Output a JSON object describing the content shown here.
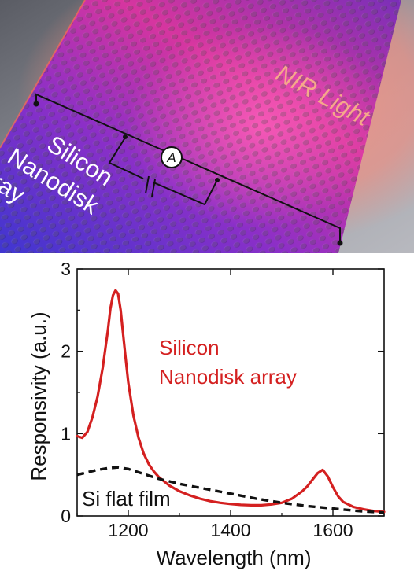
{
  "illustration": {
    "label_array_lines": [
      "Silicon",
      "Nanodisk",
      "Array"
    ],
    "label_light": "NIR Light",
    "ammeter_symbol": "A",
    "colors": {
      "background": "#8e9098",
      "sheet_blue": "#4a3fd8",
      "sheet_magenta": "#e0379e",
      "glow": "#ff8a7a",
      "wire": "#111111",
      "text_white": "#ffffff",
      "text_light": "#f3a98c"
    }
  },
  "chart_data": {
    "type": "line",
    "xlabel": "Wavelength (nm)",
    "ylabel": "Responsivity (a.u.)",
    "xlim": [
      1100,
      1700
    ],
    "ylim": [
      0,
      3
    ],
    "xticks": [
      1200,
      1400,
      1600
    ],
    "yticks": [
      0,
      1,
      2,
      3
    ],
    "grid": false,
    "series": [
      {
        "name": "Silicon Nanodisk array",
        "label_lines": [
          "Silicon",
          "Nanodisk array"
        ],
        "color": "#d42020",
        "style": "solid",
        "x": [
          1100,
          1110,
          1120,
          1130,
          1140,
          1150,
          1160,
          1165,
          1170,
          1175,
          1180,
          1185,
          1190,
          1195,
          1200,
          1210,
          1220,
          1230,
          1240,
          1250,
          1260,
          1280,
          1300,
          1320,
          1340,
          1360,
          1380,
          1400,
          1420,
          1440,
          1460,
          1480,
          1500,
          1520,
          1540,
          1550,
          1560,
          1570,
          1580,
          1590,
          1600,
          1610,
          1620,
          1640,
          1660,
          1680,
          1700
        ],
        "y": [
          0.97,
          0.95,
          1.02,
          1.2,
          1.45,
          1.8,
          2.25,
          2.52,
          2.68,
          2.74,
          2.7,
          2.5,
          2.2,
          1.9,
          1.62,
          1.22,
          0.95,
          0.76,
          0.63,
          0.54,
          0.47,
          0.37,
          0.3,
          0.25,
          0.21,
          0.18,
          0.16,
          0.145,
          0.135,
          0.13,
          0.13,
          0.14,
          0.16,
          0.21,
          0.3,
          0.36,
          0.44,
          0.52,
          0.56,
          0.48,
          0.35,
          0.24,
          0.17,
          0.11,
          0.08,
          0.06,
          0.05
        ]
      },
      {
        "name": "Si flat film",
        "color": "#111111",
        "style": "dashed",
        "x": [
          1100,
          1120,
          1140,
          1160,
          1180,
          1200,
          1220,
          1240,
          1260,
          1280,
          1300,
          1350,
          1400,
          1450,
          1500,
          1550,
          1600,
          1650,
          1700
        ],
        "y": [
          0.5,
          0.53,
          0.56,
          0.58,
          0.59,
          0.57,
          0.53,
          0.49,
          0.45,
          0.42,
          0.39,
          0.33,
          0.27,
          0.21,
          0.16,
          0.12,
          0.09,
          0.06,
          0.04
        ]
      }
    ]
  }
}
